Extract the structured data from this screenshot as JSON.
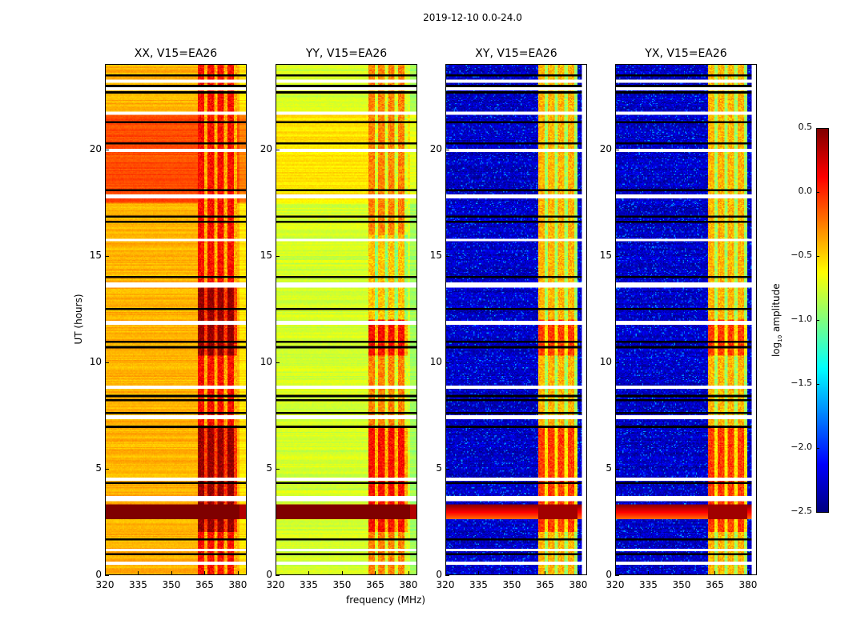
{
  "chart_data": {
    "type": "heatmap",
    "title": "2019-12-10 0.0-24.0",
    "xlabel": "frequency (MHz)",
    "ylabel": "UT (hours)",
    "xlim": [
      320,
      384
    ],
    "ylim": [
      0,
      24
    ],
    "xticks": [
      320,
      335,
      350,
      365,
      380
    ],
    "yticks": [
      0,
      5,
      10,
      15,
      20
    ],
    "colormap": "jet",
    "colorbar": {
      "label_main": "log",
      "label_sub": "10",
      "label_rest": " amplitude",
      "clim": [
        -2.5,
        0.5
      ],
      "ticks": [
        "0.5",
        "0.0",
        "−0.5",
        "−1.0",
        "−1.5",
        "−2.0",
        "−2.5"
      ],
      "tick_values": [
        0.5,
        0.0,
        -0.5,
        -1.0,
        -1.5,
        -2.0,
        -2.5
      ]
    },
    "panels": [
      {
        "title": "XX, V15=EA26",
        "baseline": -0.4,
        "band_level": 0.1,
        "late_level": -0.1
      },
      {
        "title": "YY, V15=EA26",
        "baseline": -0.75,
        "band_level": 0.0,
        "late_level": -0.55
      },
      {
        "title": "XY, V15=EA26",
        "baseline": -2.3,
        "band_level": -0.7,
        "late_level": -2.3
      },
      {
        "title": "YX, V15=EA26",
        "baseline": -2.3,
        "band_level": -0.7,
        "late_level": -2.3
      }
    ],
    "rfi_band_MHz": [
      362,
      380
    ],
    "strong_rfi_UT": [
      2.6,
      3.3
    ],
    "flagged_gaps_UT": [
      [
        0.45,
        0.6
      ],
      [
        1.1,
        1.2
      ],
      [
        3.45,
        3.7
      ],
      [
        4.4,
        4.55
      ],
      [
        7.3,
        7.5
      ],
      [
        8.75,
        8.9
      ],
      [
        11.75,
        11.95
      ],
      [
        13.5,
        13.75
      ],
      [
        15.7,
        15.8
      ],
      [
        17.7,
        17.9
      ],
      [
        19.9,
        20.05
      ],
      [
        21.65,
        21.8
      ],
      [
        22.8,
        22.95
      ],
      [
        23.15,
        23.3
      ]
    ],
    "black_lines_UT": [
      0.95,
      1.65,
      4.3,
      6.95,
      7.6,
      8.2,
      8.4,
      10.7,
      10.95,
      12.5,
      14.0,
      16.6,
      16.85,
      18.1,
      20.3,
      21.3,
      22.7,
      23.0,
      23.5
    ]
  }
}
